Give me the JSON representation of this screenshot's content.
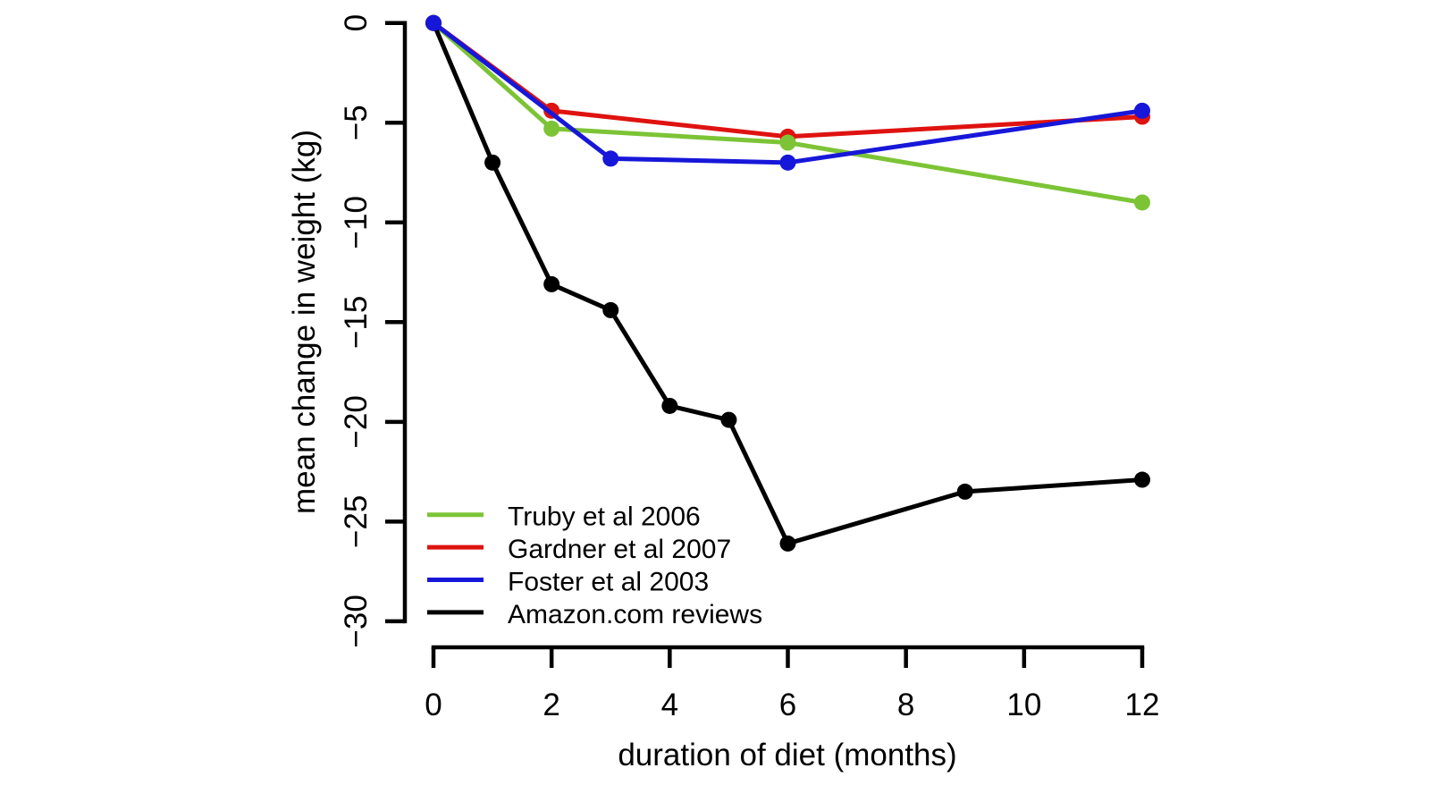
{
  "chart_data": {
    "type": "line",
    "title": "",
    "xlabel": "duration of diet (months)",
    "ylabel": "mean change in weight (kg)",
    "xlim": [
      0,
      12
    ],
    "ylim": [
      -30,
      0
    ],
    "x_ticks": [
      0,
      2,
      4,
      6,
      8,
      10,
      12
    ],
    "x_tick_labels": [
      "0",
      "2",
      "4",
      "6",
      "8",
      "10",
      "12"
    ],
    "y_ticks": [
      0,
      -5,
      -10,
      -15,
      -20,
      -25,
      -30
    ],
    "y_tick_labels": [
      "0",
      "−5",
      "−10",
      "−15",
      "−20",
      "−25",
      "−30"
    ],
    "grid": false,
    "legend_position": "inside-bottom-left",
    "background_color": "#ffffff",
    "text_color": "#000000",
    "axis_color": "#000000",
    "draw_order": [
      1,
      0,
      3,
      2
    ],
    "series": [
      {
        "name": "Truby et al  2006",
        "color": "#7cc436",
        "points": [
          [
            0,
            0
          ],
          [
            2,
            -5.3
          ],
          [
            6,
            -6.0
          ],
          [
            12,
            -9.0
          ]
        ]
      },
      {
        "name": "Gardner et al  2007",
        "color": "#de1310",
        "points": [
          [
            0,
            0
          ],
          [
            2,
            -4.4
          ],
          [
            6,
            -5.7
          ],
          [
            12,
            -4.7
          ]
        ]
      },
      {
        "name": "Foster et al  2003",
        "color": "#1717d9",
        "points": [
          [
            0,
            0
          ],
          [
            3,
            -6.8
          ],
          [
            6,
            -7.0
          ],
          [
            12,
            -4.4
          ]
        ]
      },
      {
        "name": "Amazon.com reviews",
        "color": "#000000",
        "points": [
          [
            0,
            0
          ],
          [
            1,
            -7.0
          ],
          [
            2,
            -13.1
          ],
          [
            3,
            -14.4
          ],
          [
            4,
            -19.2
          ],
          [
            5,
            -19.9
          ],
          [
            6,
            -26.1
          ],
          [
            9,
            -23.5
          ],
          [
            12,
            -22.9
          ]
        ]
      }
    ]
  }
}
